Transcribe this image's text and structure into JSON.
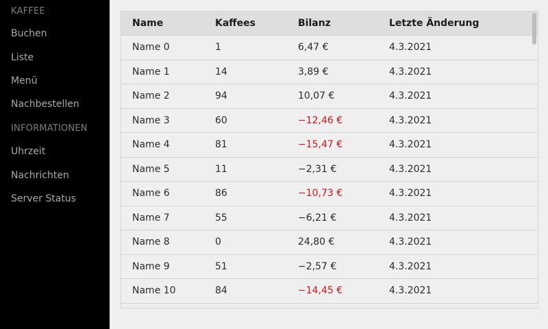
{
  "sidebar": {
    "section1": "KAFFEE",
    "items1": [
      "Buchen",
      "Liste",
      "Menü",
      "Nachbestellen"
    ],
    "section2": "INFORMATIONEN",
    "items2": [
      "Uhrzeit",
      "Nachrichten",
      "Server Status"
    ]
  },
  "table": {
    "headers": [
      "Name",
      "Kaffees",
      "Bilanz",
      "Letzte Änderung"
    ],
    "rows": [
      {
        "name": "Name 0",
        "kaffees": "1",
        "bilanz": "6,47 €",
        "datum": "4.3.2021",
        "negative": false
      },
      {
        "name": "Name 1",
        "kaffees": "14",
        "bilanz": "3,89 €",
        "datum": "4.3.2021",
        "negative": false
      },
      {
        "name": "Name 2",
        "kaffees": "94",
        "bilanz": "10,07 €",
        "datum": "4.3.2021",
        "negative": false
      },
      {
        "name": "Name 3",
        "kaffees": "60",
        "bilanz": "−12,46 €",
        "datum": "4.3.2021",
        "negative": true
      },
      {
        "name": "Name 4",
        "kaffees": "81",
        "bilanz": "−15,47 €",
        "datum": "4.3.2021",
        "negative": true
      },
      {
        "name": "Name 5",
        "kaffees": "11",
        "bilanz": "−2,31 €",
        "datum": "4.3.2021",
        "negative": false
      },
      {
        "name": "Name 6",
        "kaffees": "86",
        "bilanz": "−10,73 €",
        "datum": "4.3.2021",
        "negative": true
      },
      {
        "name": "Name 7",
        "kaffees": "55",
        "bilanz": "−6,21 €",
        "datum": "4.3.2021",
        "negative": false
      },
      {
        "name": "Name 8",
        "kaffees": "0",
        "bilanz": "24,80 €",
        "datum": "4.3.2021",
        "negative": false
      },
      {
        "name": "Name 9",
        "kaffees": "51",
        "bilanz": "−2,57 €",
        "datum": "4.3.2021",
        "negative": false
      },
      {
        "name": "Name 10",
        "kaffees": "84",
        "bilanz": "−14,45 €",
        "datum": "4.3.2021",
        "negative": true
      }
    ]
  },
  "colors": {
    "sidebar_bg": "#000000",
    "negative_text": "#d4161c",
    "header_bg": "#dedede",
    "content_bg": "#efeff0"
  }
}
